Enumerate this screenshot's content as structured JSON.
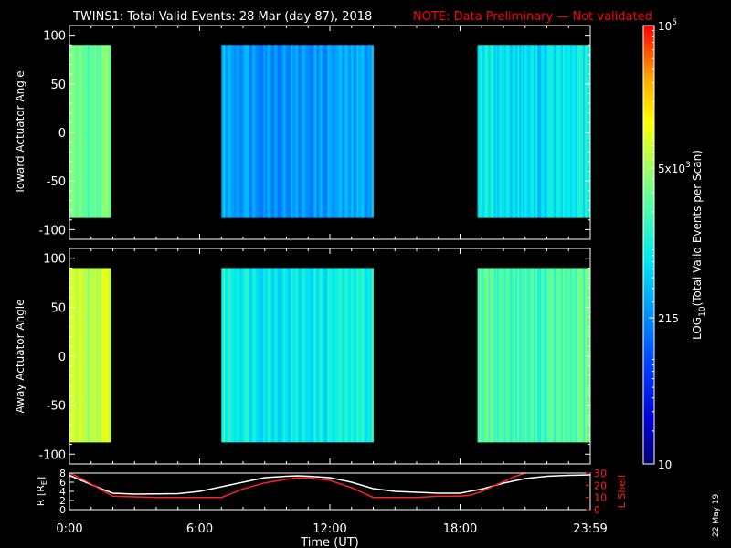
{
  "header": {
    "title": "TWINS1: Total Valid Events: 28 Mar (day  87), 2018",
    "note": "NOTE: Data Preliminary — Not validated"
  },
  "footer": {
    "date_stamp": "22 May 19"
  },
  "colors": {
    "note": "#ff0000",
    "lshell": "#ff2020",
    "radius": "#ffffff"
  },
  "chart_data": [
    {
      "type": "heatmap",
      "name": "toward",
      "ylabel": "Toward Actuator Angle",
      "ylim": [
        -110,
        110
      ],
      "yticks": [
        100,
        50,
        0,
        -50,
        -100
      ],
      "x_unit": "hours UT",
      "xlim": [
        0,
        24
      ],
      "angle_range": [
        -88,
        90
      ],
      "blocks": [
        {
          "start": 0.0,
          "end": 1.9,
          "mean_log": 3.55
        },
        {
          "start": 7.0,
          "end": 14.0,
          "mean_log": 2.55
        },
        {
          "start": 18.8,
          "end": 24.0,
          "mean_log": 2.95
        }
      ]
    },
    {
      "type": "heatmap",
      "name": "away",
      "ylabel": "Away Actuator Angle",
      "ylim": [
        -110,
        110
      ],
      "yticks": [
        100,
        50,
        0,
        -50,
        -100
      ],
      "x_unit": "hours UT",
      "xlim": [
        0,
        24
      ],
      "angle_range": [
        -88,
        90
      ],
      "blocks": [
        {
          "start": 0.0,
          "end": 1.9,
          "mean_log": 3.95
        },
        {
          "start": 7.0,
          "end": 14.0,
          "mean_log": 3.05
        },
        {
          "start": 18.8,
          "end": 24.0,
          "mean_log": 3.4
        }
      ]
    },
    {
      "type": "colorbar",
      "label": "LOG",
      "label_sub": "10",
      "label_rest": "(Total Valid Events per Scan)",
      "range_log": [
        1,
        5
      ],
      "ticks": [
        {
          "value_log": 1,
          "base": "10",
          "exp": ""
        },
        {
          "value_log": 2.3324,
          "base": "215",
          "exp": ""
        },
        {
          "value_log": 3.699,
          "base": "5x10",
          "exp": "3"
        },
        {
          "value_log": 5,
          "base": "10",
          "exp": "5"
        }
      ]
    },
    {
      "type": "line",
      "name": "orbit",
      "xlabel": "Time (UT)",
      "xticks": [
        "0:00",
        "6:00",
        "12:00",
        "18:00",
        "23:59"
      ],
      "xtick_values": [
        0,
        6,
        12,
        18,
        24
      ],
      "ylabel_left": "R [R",
      "ylabel_left_sub": "E",
      "ylabel_left_end": "]",
      "ylim_left": [
        0,
        8
      ],
      "yticks_left": [
        8,
        6,
        4,
        2,
        0
      ],
      "ylabel_right": "L Shell",
      "ylim_right": [
        0,
        30
      ],
      "yticks_right": [
        30,
        20,
        10,
        0
      ],
      "series": [
        {
          "axis": "left",
          "x": [
            0,
            0.5,
            1,
            1.5,
            2,
            3,
            5,
            6,
            7,
            8,
            9,
            10,
            10.5,
            11,
            12,
            13,
            14,
            15,
            17,
            18,
            19,
            20,
            21,
            22,
            23,
            24
          ],
          "y": [
            7.5,
            6.5,
            5.5,
            4.5,
            3.6,
            3.4,
            3.5,
            4,
            5,
            6,
            7,
            7.3,
            7.4,
            7.3,
            7,
            6,
            4.6,
            4,
            3.6,
            3.6,
            4.5,
            5.8,
            6.8,
            7.3,
            7.5,
            7.6
          ]
        },
        {
          "axis": "right",
          "x": [
            0,
            0.5,
            1,
            1.5,
            2,
            4,
            6,
            7,
            8,
            9,
            10,
            10.5,
            11,
            12,
            13,
            14,
            16,
            17,
            18,
            18.5,
            19,
            19.5,
            20,
            20.5,
            21
          ],
          "y": [
            30,
            26,
            21,
            16,
            11,
            10,
            10,
            10,
            17,
            22,
            25,
            26,
            26,
            24,
            18,
            10,
            10,
            11,
            11,
            12,
            15,
            19,
            23,
            27,
            30
          ]
        }
      ]
    }
  ]
}
